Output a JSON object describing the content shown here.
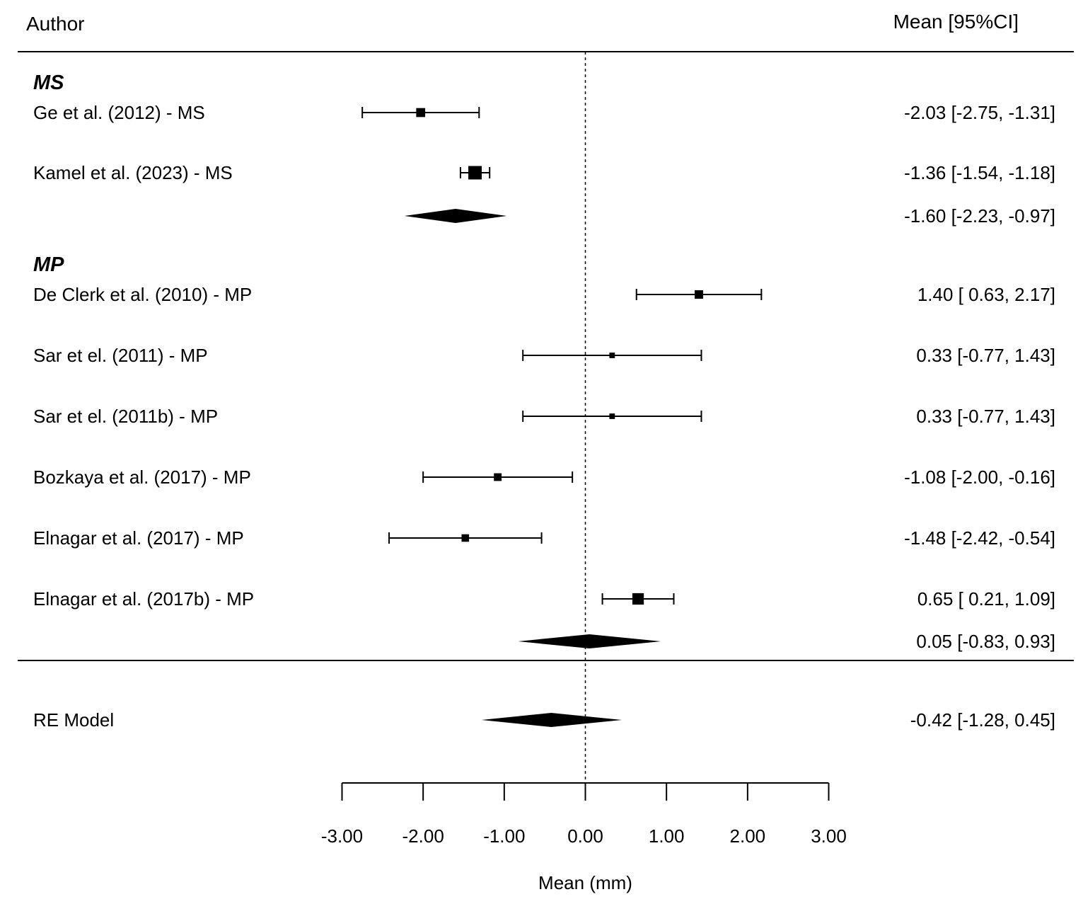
{
  "chart_data": {
    "type": "forest",
    "header": {
      "author": "Author",
      "estimate": "Mean [95%CI]"
    },
    "groups": [
      {
        "name": "MS",
        "studies": [
          {
            "label": "Ge et al. (2012) - MS",
            "mean": -2.03,
            "lower": -2.75,
            "upper": -1.31,
            "ci_text": "-2.03 [-2.75, -1.31]",
            "weight": 0.55
          },
          {
            "label": "Kamel et al. (2023) - MS",
            "mean": -1.36,
            "lower": -1.54,
            "upper": -1.18,
            "ci_text": "-1.36 [-1.54, -1.18]",
            "weight": 1.0
          }
        ],
        "summary": {
          "mean": -1.6,
          "lower": -2.23,
          "upper": -0.97,
          "ci_text": "-1.60 [-2.23, -0.97]"
        }
      },
      {
        "name": "MP",
        "studies": [
          {
            "label": "De Clerk et al. (2010) - MP",
            "mean": 1.4,
            "lower": 0.63,
            "upper": 2.17,
            "ci_text": "1.40 [ 0.63,  2.17]",
            "weight": 0.5
          },
          {
            "label": "Sar et el. (2011) - MP",
            "mean": 0.33,
            "lower": -0.77,
            "upper": 1.43,
            "ci_text": "0.33 [-0.77,  1.43]",
            "weight": 0.2
          },
          {
            "label": "Sar et el. (2011b) - MP",
            "mean": 0.33,
            "lower": -0.77,
            "upper": 1.43,
            "ci_text": "0.33 [-0.77,  1.43]",
            "weight": 0.2
          },
          {
            "label": "Bozkaya et al. (2017) - MP",
            "mean": -1.08,
            "lower": -2.0,
            "upper": -0.16,
            "ci_text": "-1.08 [-2.00, -0.16]",
            "weight": 0.42
          },
          {
            "label": "Elnagar et al. (2017) - MP",
            "mean": -1.48,
            "lower": -2.42,
            "upper": -0.54,
            "ci_text": "-1.48 [-2.42, -0.54]",
            "weight": 0.4
          },
          {
            "label": "Elnagar et al. (2017b) - MP",
            "mean": 0.65,
            "lower": 0.21,
            "upper": 1.09,
            "ci_text": "0.65 [ 0.21,  1.09]",
            "weight": 0.8
          }
        ],
        "summary": {
          "mean": 0.05,
          "lower": -0.83,
          "upper": 0.93,
          "ci_text": "0.05 [-0.83,  0.93]"
        }
      }
    ],
    "overall": {
      "label": "RE Model",
      "mean": -0.42,
      "lower": -1.28,
      "upper": 0.45,
      "ci_text": "-0.42 [-1.28,  0.45]"
    },
    "xaxis": {
      "title": "Mean (mm)",
      "range": [
        -3.0,
        3.0
      ],
      "ticks": [
        -3.0,
        -2.0,
        -1.0,
        0.0,
        1.0,
        2.0,
        3.0
      ],
      "tick_labels": [
        "-3.00",
        "-2.00",
        "-1.00",
        "0.00",
        "1.00",
        "2.00",
        "3.00"
      ]
    },
    "reference_line": 0.0
  }
}
